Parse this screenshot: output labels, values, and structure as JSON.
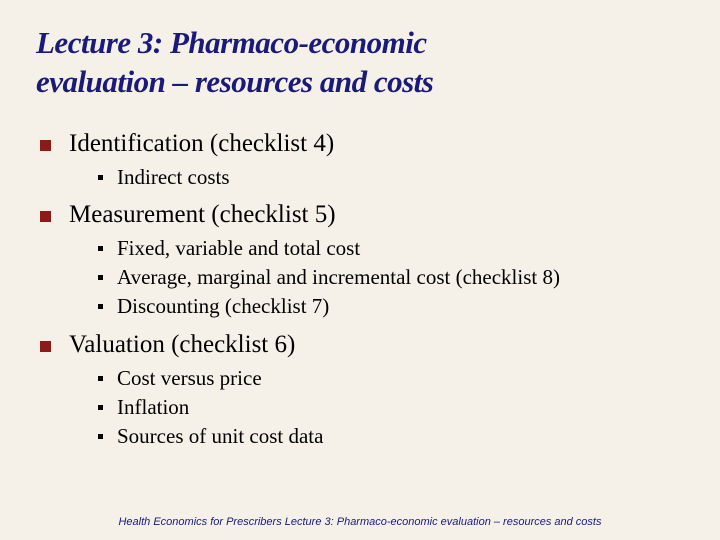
{
  "title_color": "#1a1a7a",
  "bullet_color": "#8b1a1a",
  "background_color": "#f5f1e8",
  "title": "Lecture 3:    Pharmaco-economic\nevaluation – resources and costs",
  "sections": [
    {
      "title": "Identification (checklist 4)",
      "items": [
        "Indirect costs"
      ]
    },
    {
      "title": "Measurement (checklist 5)",
      "items": [
        "Fixed, variable and total cost",
        "Average, marginal and incremental cost (checklist 8)",
        "Discounting (checklist 7)"
      ]
    },
    {
      "title": "Valuation (checklist 6)",
      "items": [
        "Cost versus price",
        "Inflation",
        "Sources of unit cost data"
      ]
    }
  ],
  "footer": "Health Economics for Prescribers Lecture 3: Pharmaco-economic evaluation – resources and costs"
}
